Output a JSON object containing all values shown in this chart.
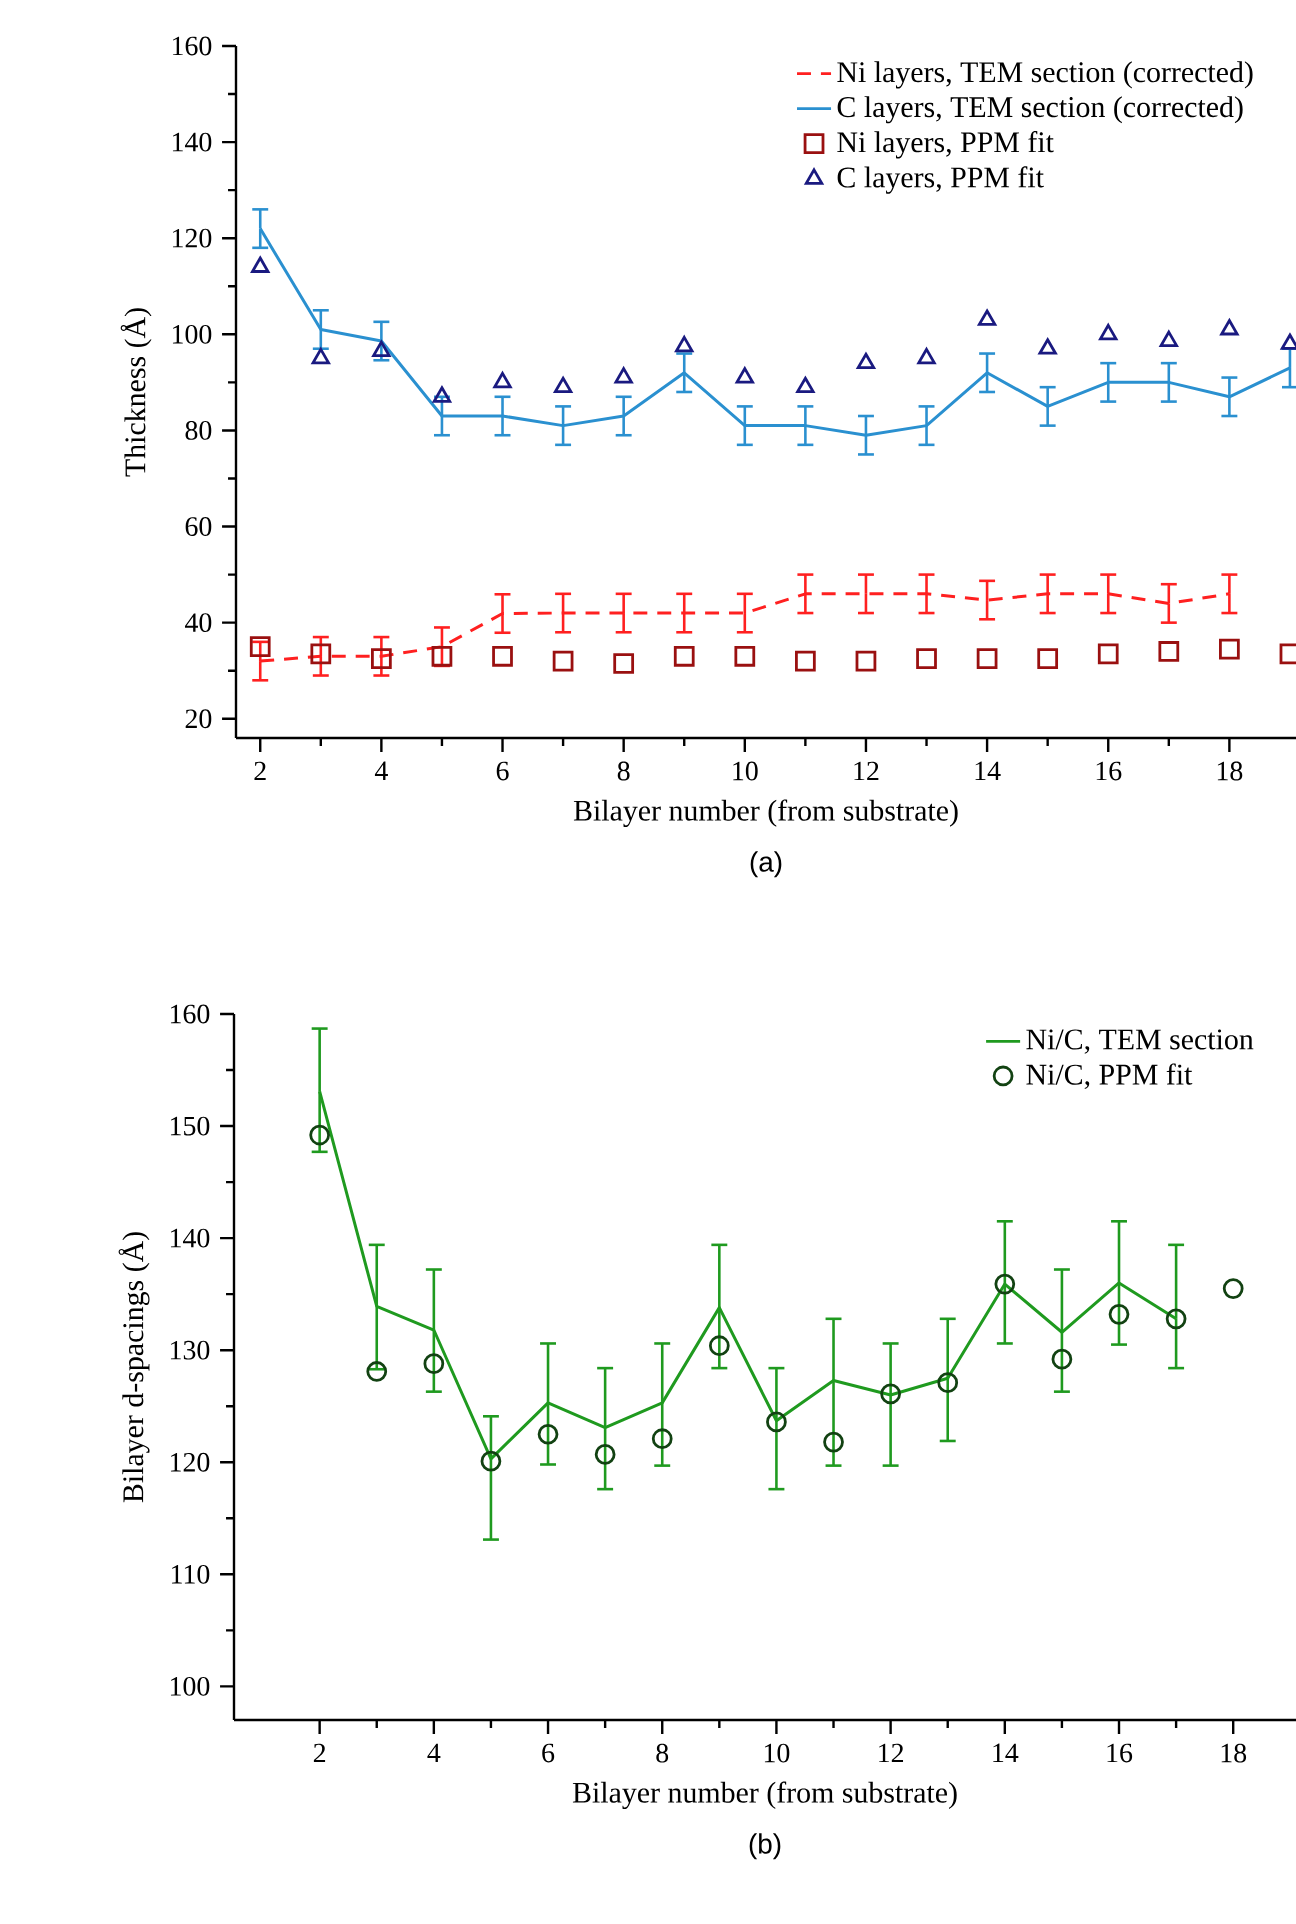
{
  "chart_data": [
    {
      "type": "line",
      "xlabel": "Bilayer number (from substrate)",
      "ylabel": "Thickness (Å)",
      "annotations": [
        "(a)"
      ],
      "xlim": [
        1.6,
        19.1
      ],
      "ylim": [
        16,
        160
      ],
      "xticks": [
        2,
        4,
        6,
        8,
        10,
        12,
        14,
        16,
        18
      ],
      "yticks": [
        20,
        40,
        60,
        80,
        100,
        120,
        140,
        160
      ],
      "legend": "top right",
      "series": [
        {
          "name": "Ni layers, TEM section (corrected)",
          "line_style": "dashed",
          "color": "#ff2020",
          "x": [
            2,
            3,
            4,
            5,
            6,
            7,
            8,
            9,
            10,
            11,
            12,
            13,
            14,
            15,
            16,
            17,
            18
          ],
          "values": [
            32,
            33,
            33,
            35,
            41.9,
            42,
            42,
            42,
            42,
            46,
            46,
            46,
            44.7,
            46,
            46,
            44,
            46
          ],
          "errors": [
            4,
            4,
            4,
            4,
            4,
            4,
            4,
            4,
            4,
            4,
            4,
            4,
            4,
            4,
            4,
            4,
            4
          ]
        },
        {
          "name": "C layers, TEM section (corrected)",
          "line_style": "solid",
          "color": "#2a90d0",
          "x": [
            2,
            3,
            4,
            5,
            6,
            7,
            8,
            9,
            10,
            11,
            12,
            13,
            14,
            15,
            16,
            17,
            18,
            19
          ],
          "values": [
            122,
            101,
            98.6,
            83,
            83,
            81,
            83,
            92,
            81,
            81,
            79,
            81,
            92,
            85,
            90,
            90,
            87,
            93
          ],
          "errors": [
            4,
            4,
            4,
            4,
            4,
            4,
            4,
            4,
            4,
            4,
            4,
            4,
            4,
            4,
            4,
            4,
            4,
            4
          ]
        },
        {
          "name": "Ni layers, PPM fit",
          "type": "scatter",
          "marker": "square",
          "color": "#9a1010",
          "x": [
            2,
            3,
            4,
            5,
            6,
            7,
            8,
            9,
            10,
            11,
            12,
            13,
            14,
            15,
            16,
            17,
            18,
            19
          ],
          "values": [
            35,
            33.5,
            32.5,
            33,
            33,
            32,
            31.5,
            33,
            33,
            32,
            32,
            32.5,
            32.5,
            32.5,
            33.5,
            34,
            34.5,
            33.5
          ]
        },
        {
          "name": "C layers, PPM fit",
          "type": "scatter",
          "marker": "triangle",
          "color": "#1a1a80",
          "x": [
            2,
            3,
            4,
            5,
            6,
            7,
            8,
            9,
            10,
            11,
            12,
            13,
            14,
            15,
            16,
            17,
            18,
            19
          ],
          "values": [
            114,
            95,
            96.5,
            87,
            90,
            89,
            91,
            97.5,
            91,
            89,
            94,
            95,
            103,
            97,
            100,
            98.6,
            101,
            98
          ]
        }
      ]
    },
    {
      "type": "line",
      "xlabel": "Bilayer number (from substrate)",
      "ylabel": "Bilayer d-spacings (Å)",
      "annotations": [
        "(b)"
      ],
      "xlim": [
        0.5,
        19.1
      ],
      "ylim": [
        97,
        160
      ],
      "xticks": [
        2,
        4,
        6,
        8,
        10,
        12,
        14,
        16,
        18
      ],
      "yticks": [
        100,
        110,
        120,
        130,
        140,
        150,
        160
      ],
      "legend": "top right",
      "series": [
        {
          "name": "Ni/C, TEM section",
          "line_style": "solid",
          "color": "#1f9a1f",
          "x": [
            2,
            3,
            4,
            5,
            6,
            7,
            8,
            9,
            10,
            11,
            12,
            13,
            14,
            15,
            16,
            17
          ],
          "values": [
            153.1,
            133.9,
            131.8,
            120.3,
            125.3,
            123.1,
            125.3,
            133.8,
            123.7,
            127.3,
            126,
            127.5,
            135.9,
            131.6,
            136,
            132.8
          ],
          "errors": [
            [
              147.7,
              158.7
            ],
            [
              128.3,
              139.4
            ],
            [
              126.3,
              137.2
            ],
            [
              113.1,
              124.1
            ],
            [
              119.8,
              130.6
            ],
            [
              117.6,
              128.4
            ],
            [
              119.7,
              130.6
            ],
            [
              128.4,
              139.4
            ],
            [
              117.6,
              128.4
            ],
            [
              119.7,
              132.8
            ],
            [
              119.7,
              130.6
            ],
            [
              121.9,
              132.8
            ],
            [
              130.6,
              141.5
            ],
            [
              126.3,
              137.2
            ],
            [
              130.5,
              141.5
            ],
            [
              128.4,
              139.4
            ]
          ]
        },
        {
          "name": "Ni/C, PPM fit",
          "type": "scatter",
          "marker": "circle",
          "color": "#124212",
          "x": [
            2,
            3,
            4,
            5,
            6,
            7,
            8,
            9,
            10,
            11,
            12,
            13,
            14,
            15,
            16,
            17,
            18
          ],
          "values": [
            149.2,
            128.1,
            128.8,
            120.1,
            122.5,
            120.7,
            122.1,
            130.4,
            123.6,
            121.8,
            126.1,
            127.1,
            135.9,
            129.2,
            133.2,
            132.8,
            135.5
          ]
        }
      ]
    }
  ]
}
